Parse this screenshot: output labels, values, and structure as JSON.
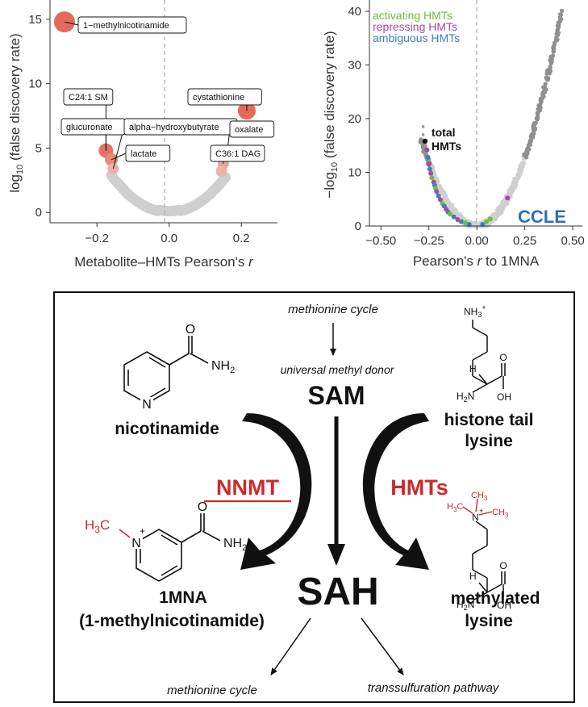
{
  "chart_data": [
    {
      "type": "scatter",
      "title": "",
      "xlabel": "Metabolite–HMTs Pearson's r",
      "ylabel": "log10 (false discovery rate)",
      "ylabel_main": "log",
      "ylabel_sub": "10",
      "ylabel_rest": " (false discovery rate)",
      "xlabel_main": "Metabolite–HMTs Pearson's ",
      "xlabel_var": "r",
      "xlim": [
        -0.33,
        0.3
      ],
      "ylim": [
        -0.8,
        16.5
      ],
      "x_ticks": [
        -0.2,
        0.0,
        0.2
      ],
      "x_tick_labels": [
        "−0.2",
        "0.0",
        "0.2"
      ],
      "y_ticks": [
        0,
        5,
        10,
        15
      ],
      "y_tick_labels": [
        "0",
        "5",
        "10",
        "15"
      ],
      "grid": false,
      "points_highlighted": [
        {
          "x": -0.29,
          "y": 14.8
        },
        {
          "x": 0.215,
          "y": 7.9
        },
        {
          "x": -0.175,
          "y": 4.8
        },
        {
          "x": -0.16,
          "y": 4.1
        },
        {
          "x": 0.16,
          "y": 4.5
        },
        {
          "x": 0.15,
          "y": 3.8
        },
        {
          "x": -0.155,
          "y": 3.4
        },
        {
          "x": 0.145,
          "y": 3.2
        }
      ],
      "annotations": [
        {
          "text": "1−methylnicotinamide",
          "x": -0.29,
          "y": 14.8
        },
        {
          "text": "C24:1 SM",
          "x": -0.175,
          "y": 4.8
        },
        {
          "text": "glucuronate",
          "x": -0.175,
          "y": 4.8
        },
        {
          "text": "lactate",
          "x": -0.16,
          "y": 4.1
        },
        {
          "text": "alpha−hydroxybutyrate",
          "x": -0.155,
          "y": 3.4
        },
        {
          "text": "cystathionine",
          "x": 0.215,
          "y": 7.9
        },
        {
          "text": "oxalate",
          "x": 0.16,
          "y": 4.5
        },
        {
          "text": "C36:1 DAG",
          "x": 0.15,
          "y": 3.8
        }
      ]
    },
    {
      "type": "scatter",
      "title": "",
      "xlabel": "Pearson's r to 1MNA",
      "ylabel": "−log10 (false discovery rate)",
      "ylabel_main": "−log",
      "ylabel_sub": "10",
      "ylabel_rest": " (false discovery rate)",
      "xlabel_var": "Pearson's ",
      "xlabel_r": "r",
      "xlabel_rest": "  to 1MNA",
      "xlim": [
        -0.56,
        0.55
      ],
      "ylim": [
        0,
        40
      ],
      "x_ticks": [
        -0.5,
        -0.25,
        0.0,
        0.25,
        0.5
      ],
      "x_tick_labels": [
        "−0.50",
        "−0.25",
        "0.00",
        "0.25",
        "0.50"
      ],
      "y_ticks": [
        0,
        10,
        20,
        30,
        40
      ],
      "y_tick_labels": [
        "0",
        "10",
        "20",
        "30",
        "40"
      ],
      "grid": false,
      "legend": {
        "placement": "top-left",
        "entries": [
          {
            "name": "activating HMTs",
            "color": "#6cbf3f"
          },
          {
            "name": "repressing HMTs",
            "color": "#a54aa3"
          },
          {
            "name": "ambiguous HMTs",
            "color": "#3f7fbf"
          }
        ]
      },
      "highlight_point": {
        "label_line1": "total",
        "label_line2": "HMTs",
        "x": -0.27,
        "y": 15.8
      },
      "hmt_points": [
        {
          "x": -0.26,
          "y": 14.2,
          "c": "#a54aa3"
        },
        {
          "x": -0.255,
          "y": 12.8,
          "c": "#3f7fbf"
        },
        {
          "x": -0.25,
          "y": 11.5,
          "c": "#a54aa3"
        },
        {
          "x": -0.245,
          "y": 10.6,
          "c": "#3f7fbf"
        },
        {
          "x": -0.24,
          "y": 9.8,
          "c": "#a54aa3"
        },
        {
          "x": -0.235,
          "y": 9.0,
          "c": "#6cbf3f"
        },
        {
          "x": -0.225,
          "y": 8.2,
          "c": "#a54aa3"
        },
        {
          "x": -0.22,
          "y": 7.6,
          "c": "#3f7fbf"
        },
        {
          "x": -0.215,
          "y": 7.0,
          "c": "#6cbf3f"
        },
        {
          "x": -0.21,
          "y": 6.4,
          "c": "#a54aa3"
        },
        {
          "x": -0.2,
          "y": 5.6,
          "c": "#3f7fbf"
        },
        {
          "x": -0.19,
          "y": 4.9,
          "c": "#a54aa3"
        },
        {
          "x": -0.18,
          "y": 4.2,
          "c": "#6cbf3f"
        },
        {
          "x": -0.17,
          "y": 3.7,
          "c": "#3f7fbf"
        },
        {
          "x": -0.16,
          "y": 3.1,
          "c": "#a54aa3"
        },
        {
          "x": -0.15,
          "y": 2.6,
          "c": "#3f7fbf"
        },
        {
          "x": -0.14,
          "y": 2.2,
          "c": "#6cbf3f"
        },
        {
          "x": -0.12,
          "y": 1.7,
          "c": "#3f7fbf"
        },
        {
          "x": -0.1,
          "y": 1.2,
          "c": "#a54aa3"
        },
        {
          "x": -0.08,
          "y": 0.8,
          "c": "#3f7fbf"
        },
        {
          "x": -0.06,
          "y": 0.6,
          "c": "#6cbf3f"
        },
        {
          "x": -0.04,
          "y": 0.3,
          "c": "#3f7fbf"
        },
        {
          "x": 0.03,
          "y": 0.3,
          "c": "#3f7fbf"
        },
        {
          "x": 0.05,
          "y": 0.8,
          "c": "#6cbf3f"
        },
        {
          "x": 0.07,
          "y": 1.3,
          "c": "#6cbf3f"
        },
        {
          "x": 0.16,
          "y": 5.2,
          "c": "#a54aa3"
        }
      ],
      "corner_label": "CCLE",
      "corner_label_color": "#2f6fb5"
    }
  ],
  "diagram": {
    "top_text": "methionine cycle",
    "donor_text": "universal methyl donor",
    "sam": "SAM",
    "sah": "SAH",
    "bottom_left": "methionine cycle",
    "bottom_right": "transsulfuration pathway",
    "nicotinamide": "nicotinamide",
    "nnmt": "NNMT",
    "hmts": "HMTs",
    "mna_line1": "1MNA",
    "mna_line2": "(1-methylnicotinamide)",
    "histone_line1": "histone tail",
    "histone_line2": "lysine",
    "methylated_line1": "methylated",
    "methylated_line2": "lysine",
    "accent_color": "#cc2a2a",
    "chem": {
      "O": "O",
      "N": "N",
      "NH": "NH",
      "sub2": "2",
      "H": "H",
      "sub3": "3",
      "C": "C",
      "plus": "+",
      "H2N": "H",
      "H2N_sub": "2",
      "H2N_N": "N",
      "OH": "OH",
      "NH3": "NH",
      "NH3_sub": "3",
      "NH3_sup": "+",
      "H3C_H": "H",
      "H3C_sub": "3",
      "H3C_C": "C",
      "CH3": "CH",
      "CH3_sub": "3",
      "N_plus": "+"
    }
  }
}
